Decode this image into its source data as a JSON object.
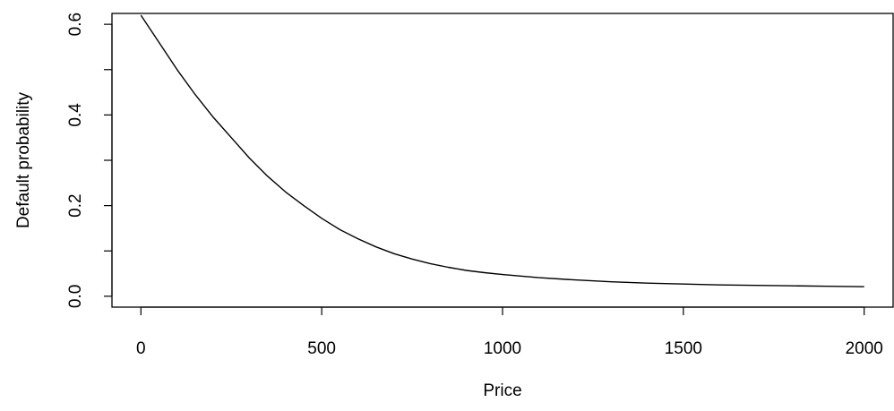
{
  "chart_data": {
    "type": "line",
    "title": "",
    "xlabel": "Price",
    "ylabel": "Default probability",
    "xlim": [
      -80,
      2080
    ],
    "ylim": [
      -0.024,
      0.624
    ],
    "x_ticks": [
      0,
      500,
      1000,
      1500,
      2000
    ],
    "x_tick_labels": [
      "0",
      "500",
      "1000",
      "1500",
      "2000"
    ],
    "y_ticks": [
      0.0,
      0.1,
      0.2,
      0.3,
      0.4,
      0.5,
      0.6
    ],
    "y_tick_labels": [
      "0.0",
      "",
      "0.2",
      "",
      "0.4",
      "",
      "0.6"
    ],
    "grid": false,
    "legend": "none",
    "series": [
      {
        "color": "#000000",
        "x": [
          0,
          50,
          100,
          150,
          200,
          250,
          300,
          350,
          400,
          450,
          500,
          550,
          600,
          650,
          700,
          750,
          800,
          850,
          900,
          950,
          1000,
          1100,
          1200,
          1300,
          1400,
          1500,
          1600,
          1700,
          1800,
          1900,
          2000
        ],
        "y": [
          0.62,
          0.56,
          0.5,
          0.445,
          0.395,
          0.35,
          0.305,
          0.265,
          0.23,
          0.2,
          0.172,
          0.147,
          0.127,
          0.109,
          0.094,
          0.082,
          0.072,
          0.064,
          0.057,
          0.052,
          0.048,
          0.041,
          0.036,
          0.032,
          0.029,
          0.027,
          0.025,
          0.024,
          0.023,
          0.022,
          0.021
        ]
      }
    ]
  }
}
